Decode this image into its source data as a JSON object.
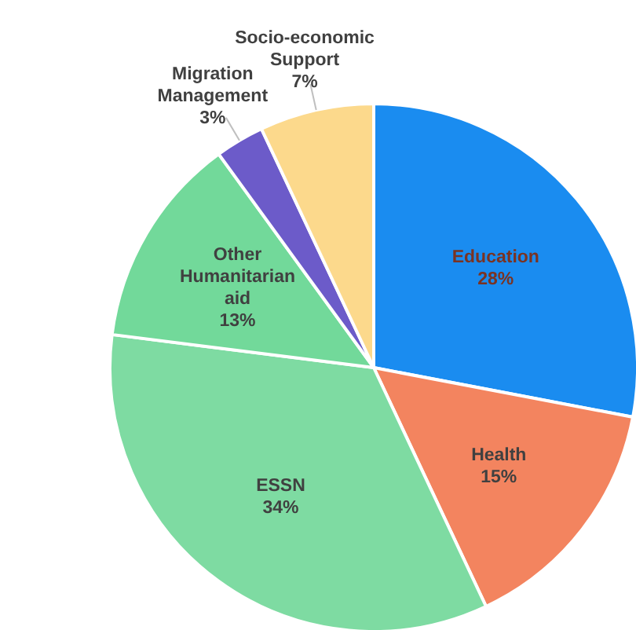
{
  "chart_data": {
    "type": "pie",
    "categories": [
      "Education",
      "Health",
      "ESSN",
      "Other Humanitarian aid",
      "Migration Management",
      "Socio-economic Support"
    ],
    "values": [
      28,
      15,
      34,
      13,
      3,
      7
    ],
    "colors": [
      "#1a8cf0",
      "#f3845f",
      "#7edba2",
      "#72d99a",
      "#6c5bc9",
      "#fcd98c"
    ],
    "value_labels": [
      "28%",
      "15%",
      "34%",
      "13%",
      "3%",
      "7%"
    ]
  }
}
